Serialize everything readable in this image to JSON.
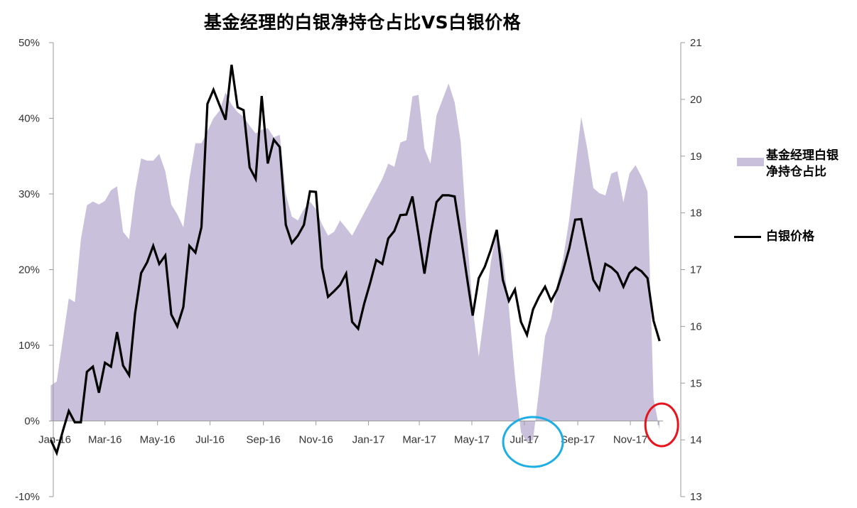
{
  "chart_data": {
    "type": "area+line",
    "title": "基金经理的白银净持仓占比VS白银价格",
    "legend_position": "right",
    "grid": false,
    "x_tick_labels": [
      "Jan-16",
      "Mar-16",
      "May-16",
      "Jul-16",
      "Sep-16",
      "Nov-16",
      "Jan-17",
      "Mar-17",
      "May-17",
      "Jul-17",
      "Sep-17",
      "Nov-17"
    ],
    "x_tick_dates": [
      "2016-01-01",
      "2016-03-01",
      "2016-05-01",
      "2016-07-01",
      "2016-09-01",
      "2016-11-01",
      "2017-01-01",
      "2017-03-01",
      "2017-05-01",
      "2017-07-01",
      "2017-09-01",
      "2017-11-01"
    ],
    "y_left": {
      "range": [
        -0.1,
        0.5
      ],
      "ticks": [
        "-10%",
        "0%",
        "10%",
        "20%",
        "30%",
        "40%",
        "50%"
      ],
      "tick_values": [
        -10,
        0,
        10,
        20,
        30,
        40,
        50
      ]
    },
    "y_right": {
      "range": [
        13,
        21
      ],
      "ticks": [
        "13",
        "14",
        "15",
        "16",
        "17",
        "18",
        "19",
        "20",
        "21"
      ],
      "tick_values": [
        13,
        14,
        15,
        16,
        17,
        18,
        19,
        20,
        21
      ]
    },
    "x": [
      "2015-12-29",
      "2016-01-05",
      "2016-01-12",
      "2016-01-19",
      "2016-01-26",
      "2016-02-02",
      "2016-02-09",
      "2016-02-16",
      "2016-02-23",
      "2016-03-01",
      "2016-03-08",
      "2016-03-15",
      "2016-03-22",
      "2016-03-29",
      "2016-04-05",
      "2016-04-12",
      "2016-04-19",
      "2016-04-26",
      "2016-05-03",
      "2016-05-10",
      "2016-05-17",
      "2016-05-24",
      "2016-05-31",
      "2016-06-07",
      "2016-06-14",
      "2016-06-21",
      "2016-06-28",
      "2016-07-05",
      "2016-07-12",
      "2016-07-19",
      "2016-07-26",
      "2016-08-02",
      "2016-08-09",
      "2016-08-16",
      "2016-08-23",
      "2016-08-30",
      "2016-09-06",
      "2016-09-13",
      "2016-09-20",
      "2016-09-27",
      "2016-10-04",
      "2016-10-11",
      "2016-10-18",
      "2016-10-25",
      "2016-11-01",
      "2016-11-08",
      "2016-11-15",
      "2016-11-22",
      "2016-11-29",
      "2016-12-06",
      "2016-12-13",
      "2016-12-20",
      "2016-12-27",
      "2017-01-03",
      "2017-01-10",
      "2017-01-17",
      "2017-01-24",
      "2017-01-31",
      "2017-02-07",
      "2017-02-14",
      "2017-02-21",
      "2017-02-28",
      "2017-03-07",
      "2017-03-14",
      "2017-03-21",
      "2017-03-28",
      "2017-04-04",
      "2017-04-11",
      "2017-04-18",
      "2017-04-25",
      "2017-05-02",
      "2017-05-09",
      "2017-05-16",
      "2017-05-23",
      "2017-05-30",
      "2017-06-06",
      "2017-06-13",
      "2017-06-20",
      "2017-06-27",
      "2017-07-04",
      "2017-07-11",
      "2017-07-18",
      "2017-07-25",
      "2017-08-01",
      "2017-08-08",
      "2017-08-15",
      "2017-08-22",
      "2017-08-29",
      "2017-09-05",
      "2017-09-12",
      "2017-09-19",
      "2017-09-26",
      "2017-10-03",
      "2017-10-10",
      "2017-10-17",
      "2017-10-24",
      "2017-10-31",
      "2017-11-07",
      "2017-11-14",
      "2017-11-21",
      "2017-11-28",
      "2017-12-05"
    ],
    "series": [
      {
        "name": "基金经理白银净持仓占比",
        "name_lines": [
          "基金经理白银",
          "净持仓占比"
        ],
        "type": "area",
        "axis": "left",
        "unit": "%",
        "color": "#c9c0dc",
        "values": [
          4.7,
          5.2,
          10.7,
          16.2,
          15.7,
          24,
          28.5,
          29,
          28.6,
          29.1,
          30.5,
          31,
          25,
          24,
          30.3,
          34.7,
          34.4,
          34.4,
          35.3,
          33,
          28.6,
          27.3,
          25.6,
          32,
          36.7,
          36.7,
          38.3,
          40,
          41,
          43.4,
          41.8,
          40.8,
          40.2,
          39,
          38,
          38.5,
          38.7,
          37.5,
          37.8,
          30,
          27,
          26.5,
          28,
          29,
          28,
          26,
          24.5,
          25,
          26.5,
          25.5,
          24.5,
          26,
          27.5,
          29,
          30.5,
          32,
          34,
          33.6,
          36.8,
          37.1,
          42.9,
          43.1,
          36,
          34,
          40.4,
          42.5,
          44.6,
          42.1,
          37,
          25,
          15,
          8.5,
          14.6,
          21,
          25.3,
          21.9,
          15,
          6,
          -1.5,
          -2.8,
          -2.5,
          4,
          11.2,
          13.5,
          18,
          21.5,
          26.6,
          33.3,
          40.2,
          36,
          30.8,
          30.1,
          29.8,
          32.7,
          33,
          28.9,
          32.7,
          33.8,
          32.3,
          30.3,
          3,
          -1.2
        ]
      },
      {
        "name": "白银价格",
        "type": "line",
        "axis": "right",
        "color": "#000000",
        "values": [
          14.0,
          13.77,
          14.15,
          14.51,
          14.31,
          14.31,
          15.2,
          15.29,
          14.83,
          15.36,
          15.29,
          15.9,
          15.31,
          15.14,
          16.23,
          16.94,
          17.13,
          17.42,
          17.1,
          17.25,
          16.21,
          16.0,
          16.34,
          17.42,
          17.3,
          17.75,
          19.92,
          20.17,
          19.9,
          19.64,
          20.61,
          19.86,
          19.81,
          18.8,
          18.6,
          20.06,
          18.87,
          19.29,
          19.16,
          17.79,
          17.47,
          17.6,
          17.79,
          18.38,
          18.37,
          17.04,
          16.52,
          16.62,
          16.73,
          16.93,
          16.08,
          15.96,
          16.4,
          16.77,
          17.17,
          17.1,
          17.55,
          17.68,
          17.96,
          17.97,
          18.29,
          17.62,
          16.93,
          17.62,
          18.19,
          18.31,
          18.31,
          18.29,
          17.62,
          16.9,
          16.19,
          16.85,
          17.05,
          17.35,
          17.7,
          16.82,
          16.45,
          16.65,
          16.08,
          15.85,
          16.3,
          16.52,
          16.7,
          16.45,
          16.65,
          16.99,
          17.37,
          17.88,
          17.89,
          17.35,
          16.82,
          16.65,
          17.1,
          17.04,
          16.94,
          16.7,
          16.94,
          17.04,
          16.97,
          16.85,
          16.1,
          15.74
        ]
      }
    ],
    "annotations": [
      {
        "shape": "ellipse",
        "color": "#1eaee6",
        "near_date": "2017-07-11"
      },
      {
        "shape": "ellipse",
        "color": "#e8141b",
        "near_date": "2017-12-05"
      }
    ]
  }
}
